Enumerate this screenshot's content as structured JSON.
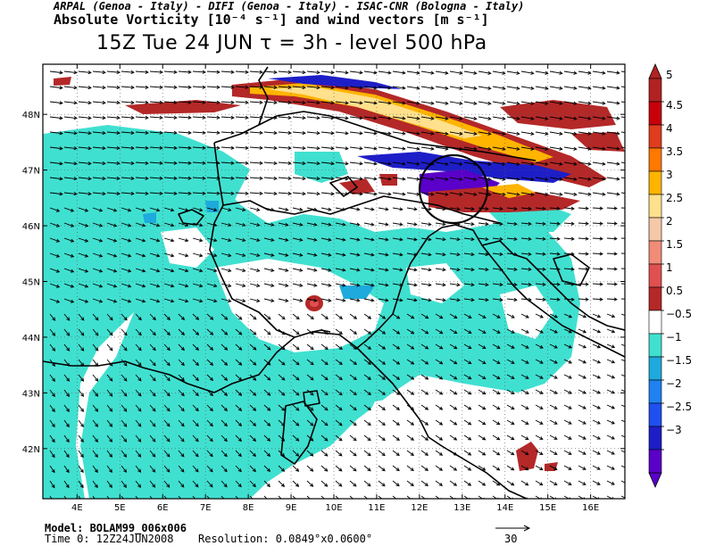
{
  "header": {
    "credits": "ARPAL (Genoa - Italy)  -  DIFI (Genoa - Italy)  -  ISAC-CNR (Bologna - Italy)",
    "field_title": "Absolute Vorticity [10⁻⁴ s⁻¹] and wind vectors [m s⁻¹]",
    "valid_time": "15Z Tue 24 JUN  τ = 3h  -  level 500 hPa"
  },
  "map": {
    "lat_labels": [
      "48N",
      "47N",
      "46N",
      "45N",
      "44N",
      "43N",
      "42N"
    ],
    "lat_values": [
      48,
      47,
      46,
      45,
      44,
      43,
      42
    ],
    "lon_labels": [
      "4E",
      "5E",
      "6E",
      "7E",
      "8E",
      "9E",
      "10E",
      "11E",
      "12E",
      "13E",
      "14E",
      "15E",
      "16E"
    ],
    "lon_values": [
      4,
      5,
      6,
      7,
      8,
      9,
      10,
      11,
      12,
      13,
      14,
      15,
      16
    ],
    "lon_range": [
      3.2,
      16.8
    ],
    "lat_range": [
      41.1,
      48.9
    ],
    "highlight_circle_center": [
      12.3,
      46.7
    ]
  },
  "colorbar": {
    "labels": [
      "5",
      "4.5",
      "4",
      "3.5",
      "3",
      "2.5",
      "2",
      "1.5",
      "1",
      "0.5",
      "−0.5",
      "−1",
      "−1.5",
      "−2",
      "−2.5",
      "−3"
    ],
    "colors": [
      "#b22222",
      "#c8000a",
      "#e03c1e",
      "#ff7800",
      "#ffb400",
      "#ffe08c",
      "#f5c8aa",
      "#f08c78",
      "#e05050",
      "#b42828",
      "#ffffff",
      "#40e0d0",
      "#1eaadc",
      "#1e82f0",
      "#1e50f0",
      "#1e1ec8",
      "#5a00c8"
    ]
  },
  "footer": {
    "model": "Model: BOLAM99_006x006",
    "time0": "Time 0: 12Z24JUN2008",
    "resolution": "Resolution: 0.0849°x0.0600°",
    "ref_vector": "30"
  },
  "colors": {
    "positive": "#b42828",
    "negative": "#40e0d0",
    "strong_negative": "#1e1ec8"
  }
}
